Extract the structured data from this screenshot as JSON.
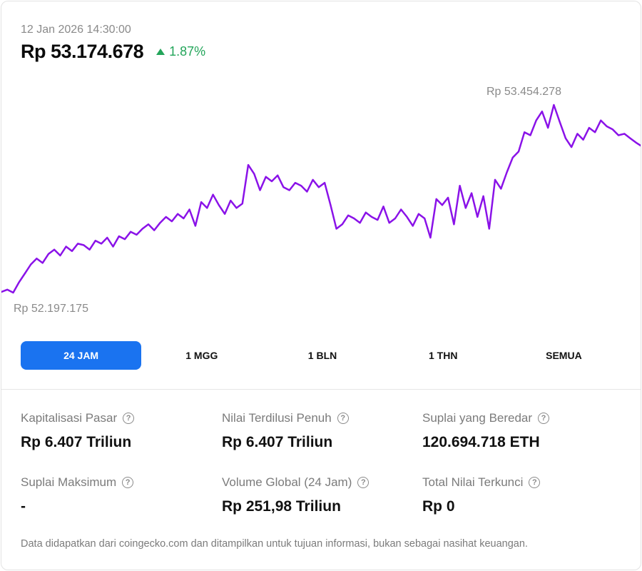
{
  "header": {
    "timestamp": "12 Jan 2026 14:30:00",
    "price": "Rp 53.174.678",
    "change": "1.87%",
    "change_color": "#23a55a"
  },
  "chart_data": {
    "type": "line",
    "series": [
      {
        "color": "#8a12e8",
        "values": [
          52195000,
          52210000,
          52190000,
          52260000,
          52320000,
          52380000,
          52420000,
          52390000,
          52450000,
          52480000,
          52440000,
          52500000,
          52470000,
          52520000,
          52510000,
          52480000,
          52540000,
          52520000,
          52560000,
          52500000,
          52570000,
          52550000,
          52600000,
          52580000,
          52620000,
          52650000,
          52610000,
          52660000,
          52700000,
          52670000,
          52720000,
          52690000,
          52750000,
          52640000,
          52800000,
          52760000,
          52850000,
          52780000,
          52720000,
          52810000,
          52760000,
          52790000,
          53050000,
          52990000,
          52880000,
          52970000,
          52940000,
          52980000,
          52900000,
          52880000,
          52930000,
          52910000,
          52870000,
          52950000,
          52900000,
          52930000,
          52780000,
          52620000,
          52650000,
          52710000,
          52690000,
          52660000,
          52730000,
          52700000,
          52680000,
          52770000,
          52660000,
          52690000,
          52750000,
          52700000,
          52640000,
          52720000,
          52690000,
          52560000,
          52820000,
          52780000,
          52830000,
          52650000,
          52910000,
          52760000,
          52860000,
          52700000,
          52840000,
          52620000,
          52950000,
          52890000,
          53000000,
          53100000,
          53140000,
          53270000,
          53250000,
          53350000,
          53410000,
          53300000,
          53454278,
          53340000,
          53230000,
          53170000,
          53260000,
          53220000,
          53300000,
          53270000,
          53350000,
          53310000,
          53290000,
          53250000,
          53260000,
          53230000,
          53200000,
          53174678
        ]
      }
    ],
    "annotations": {
      "high_label": "Rp 53.454.278",
      "low_label": "Rp 52.197.175"
    }
  },
  "tabs": [
    {
      "label": "24 JAM",
      "active": true
    },
    {
      "label": "1 MGG",
      "active": false
    },
    {
      "label": "1 BLN",
      "active": false
    },
    {
      "label": "1 THN",
      "active": false
    },
    {
      "label": "SEMUA",
      "active": false
    }
  ],
  "stats": [
    {
      "label": "Kapitalisasi Pasar",
      "value": "Rp 6.407 Triliun"
    },
    {
      "label": "Nilai Terdilusi Penuh",
      "value": "Rp 6.407 Triliun"
    },
    {
      "label": "Suplai yang Beredar",
      "value": "120.694.718 ETH"
    },
    {
      "label": "Suplai Maksimum",
      "value": "-"
    },
    {
      "label": "Volume Global (24 Jam)",
      "value": "Rp 251,98 Triliun"
    },
    {
      "label": "Total Nilai Terkunci",
      "value": "Rp 0"
    }
  ],
  "help_icon_glyph": "?",
  "footnote": "Data didapatkan dari coingecko.com dan ditampilkan untuk tujuan informasi, bukan sebagai nasihat keuangan."
}
